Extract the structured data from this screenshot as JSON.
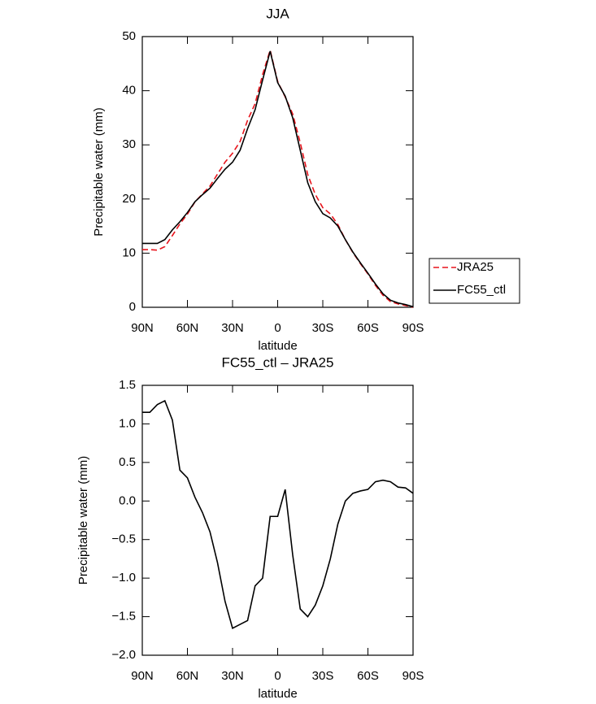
{
  "chart_data": [
    {
      "type": "line",
      "title": "JJA",
      "x_label": "latitude",
      "y_label": "Precipitable water (mm)",
      "x": [
        90,
        85,
        80,
        75,
        70,
        65,
        60,
        55,
        50,
        45,
        40,
        35,
        30,
        25,
        20,
        15,
        10,
        5,
        0,
        -5,
        -10,
        -15,
        -20,
        -25,
        -30,
        -35,
        -40,
        -45,
        -50,
        -55,
        -60,
        -65,
        -70,
        -75,
        -80,
        -85,
        -90
      ],
      "series": [
        {
          "name": "JRA25",
          "color": "#e8141c",
          "line_style": "dashed",
          "values": [
            10.65,
            10.65,
            10.55,
            11.2,
            13.25,
            15.4,
            17.2,
            19.45,
            20.95,
            22.4,
            24.6,
            26.8,
            28.45,
            30.6,
            34.55,
            37.6,
            43,
            47.5,
            41.7,
            38.85,
            35.7,
            30.4,
            24.5,
            20.85,
            18.4,
            17.25,
            15.3,
            12.5,
            10.1,
            8.07,
            6.15,
            4.05,
            2.23,
            1.05,
            0.62,
            0.33,
            0.0
          ]
        },
        {
          "name": "FC55_ctl",
          "color": "#000000",
          "line_style": "solid",
          "values": [
            11.8,
            11.8,
            11.8,
            12.5,
            14.3,
            15.8,
            17.5,
            19.5,
            20.8,
            22,
            23.8,
            25.5,
            26.8,
            29,
            33,
            36.5,
            42,
            47.3,
            41.5,
            39,
            35,
            29,
            23,
            19.5,
            17.3,
            16.5,
            15,
            12.5,
            10.2,
            8.2,
            6.3,
            4.3,
            2.5,
            1.3,
            0.8,
            0.5,
            0.1
          ]
        }
      ],
      "xlim": [
        90,
        -90
      ],
      "xticks": [
        {
          "value": 90,
          "label": "90N"
        },
        {
          "value": 60,
          "label": "60N"
        },
        {
          "value": 30,
          "label": "30N"
        },
        0,
        {
          "value": -30,
          "label": "30S"
        },
        {
          "value": -60,
          "label": "60S"
        },
        {
          "value": -90,
          "label": "90S"
        }
      ],
      "ylim": [
        0,
        50
      ],
      "yticks": [
        0,
        10,
        20,
        30,
        40,
        50
      ],
      "legend": "right"
    },
    {
      "type": "line",
      "title": "FC55_ctl – JRA25",
      "x_label": "latitude",
      "y_label": "Precipitable water (mm)",
      "x": [
        90,
        85,
        80,
        75,
        70,
        65,
        60,
        55,
        50,
        45,
        40,
        35,
        30,
        25,
        20,
        15,
        10,
        5,
        0,
        -5,
        -10,
        -15,
        -20,
        -25,
        -30,
        -35,
        -40,
        -45,
        -50,
        -55,
        -60,
        -65,
        -70,
        -75,
        -80,
        -85,
        -90
      ],
      "color": "#000000",
      "values": [
        1.15,
        1.15,
        1.25,
        1.3,
        1.05,
        0.4,
        0.3,
        0.05,
        -0.15,
        -0.4,
        -0.8,
        -1.3,
        -1.65,
        -1.6,
        -1.55,
        -1.1,
        -1.0,
        -0.2,
        -0.2,
        0.15,
        -0.7,
        -1.4,
        -1.5,
        -1.35,
        -1.1,
        -0.75,
        -0.3,
        0.0,
        0.1,
        0.13,
        0.15,
        0.25,
        0.27,
        0.25,
        0.18,
        0.17,
        0.1
      ],
      "xlim": [
        90,
        -90
      ],
      "xticks": [
        {
          "value": 90,
          "label": "90N"
        },
        {
          "value": 60,
          "label": "60N"
        },
        {
          "value": 30,
          "label": "30N"
        },
        0,
        {
          "value": -30,
          "label": "30S"
        },
        {
          "value": -60,
          "label": "60S"
        },
        {
          "value": -90,
          "label": "90S"
        }
      ],
      "ylim": [
        -2,
        1.5
      ],
      "yticks": [
        {
          "value": -2,
          "label": "−2.0"
        },
        {
          "value": -1.5,
          "label": "−1.5"
        },
        {
          "value": -1,
          "label": "−1.0"
        },
        {
          "value": -0.5,
          "label": "−0.5"
        },
        {
          "value": 0,
          "label": "0.0"
        },
        0.5,
        {
          "value": 1,
          "label": "1.0"
        },
        1.5
      ]
    }
  ]
}
